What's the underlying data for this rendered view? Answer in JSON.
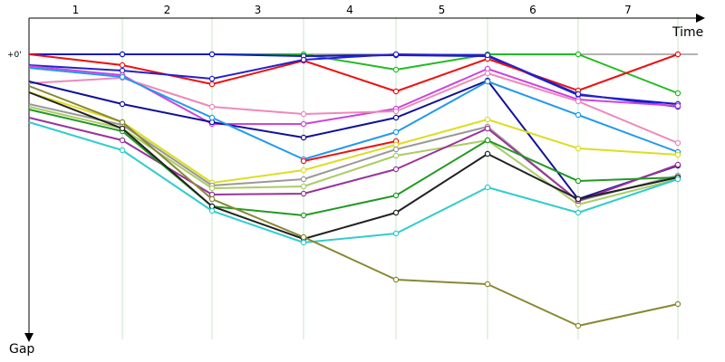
{
  "chart_data": {
    "type": "line",
    "title": "",
    "xlabel": "Time",
    "ylabel": "Gap",
    "zero_label": "+0'",
    "laps": [
      "1",
      "2",
      "3",
      "4",
      "5",
      "6",
      "7"
    ],
    "x_points": [
      0,
      1,
      2,
      3,
      4,
      5,
      6,
      7
    ],
    "gap_range": [
      0,
      300
    ],
    "series": [
      {
        "name": "green",
        "color": "#22bb22",
        "gaps": [
          0,
          0,
          0,
          0,
          17,
          0,
          0,
          43
        ]
      },
      {
        "name": "navy",
        "color": "#1515cc",
        "gaps": [
          0,
          0,
          0,
          2,
          1,
          2,
          45,
          55
        ]
      },
      {
        "name": "red",
        "color": "#ee1111",
        "gaps": [
          0,
          12,
          33,
          7,
          41,
          5,
          40,
          0
        ]
      },
      {
        "name": "blue",
        "color": "#2222cc",
        "gaps": [
          12,
          18,
          27,
          6,
          0,
          1,
          44,
          58
        ]
      },
      {
        "name": "purple-pink",
        "color": "#cc44dd",
        "gaps": [
          13,
          23,
          77,
          77,
          60,
          16,
          50,
          57
        ]
      },
      {
        "name": "pink",
        "color": "#ee88bb",
        "gaps": [
          32,
          26,
          58,
          66,
          63,
          21,
          52,
          98
        ]
      },
      {
        "name": "dark-blue",
        "color": "#111199",
        "gaps": [
          30,
          55,
          75,
          92,
          70,
          29,
          160,
          123
        ]
      },
      {
        "name": "sky-blue",
        "color": "#2299ee",
        "gaps": [
          15,
          25,
          70,
          116,
          86,
          30,
          67,
          108
        ]
      },
      {
        "name": "red-2",
        "color": "#ee1111",
        "gaps": [
          null,
          null,
          null,
          118,
          96,
          null,
          null,
          null
        ]
      },
      {
        "name": "yellow",
        "color": "#dddd22",
        "gaps": [
          42,
          75,
          142,
          128,
          100,
          72,
          104,
          111
        ]
      },
      {
        "name": "gray",
        "color": "#999999",
        "gaps": [
          55,
          78,
          145,
          138,
          105,
          80,
          162,
          134
        ]
      },
      {
        "name": "olive-light",
        "color": "#aacc66",
        "gaps": [
          58,
          82,
          148,
          146,
          112,
          95,
          166,
          138
        ]
      },
      {
        "name": "violet",
        "color": "#993399",
        "gaps": [
          70,
          95,
          155,
          154,
          127,
          82,
          162,
          122
        ]
      },
      {
        "name": "dark-green",
        "color": "#229922",
        "gaps": [
          61,
          85,
          168,
          178,
          156,
          95,
          140,
          136
        ]
      },
      {
        "name": "black",
        "color": "#222222",
        "gaps": [
          42,
          82,
          168,
          204,
          175,
          110,
          160,
          136
        ]
      },
      {
        "name": "teal",
        "color": "#33cccc",
        "gaps": [
          75,
          106,
          173,
          208,
          198,
          147,
          175,
          138
        ]
      },
      {
        "name": "olive",
        "color": "#888833",
        "gaps": [
          35,
          75,
          160,
          202,
          249,
          254,
          300,
          276
        ]
      }
    ]
  }
}
